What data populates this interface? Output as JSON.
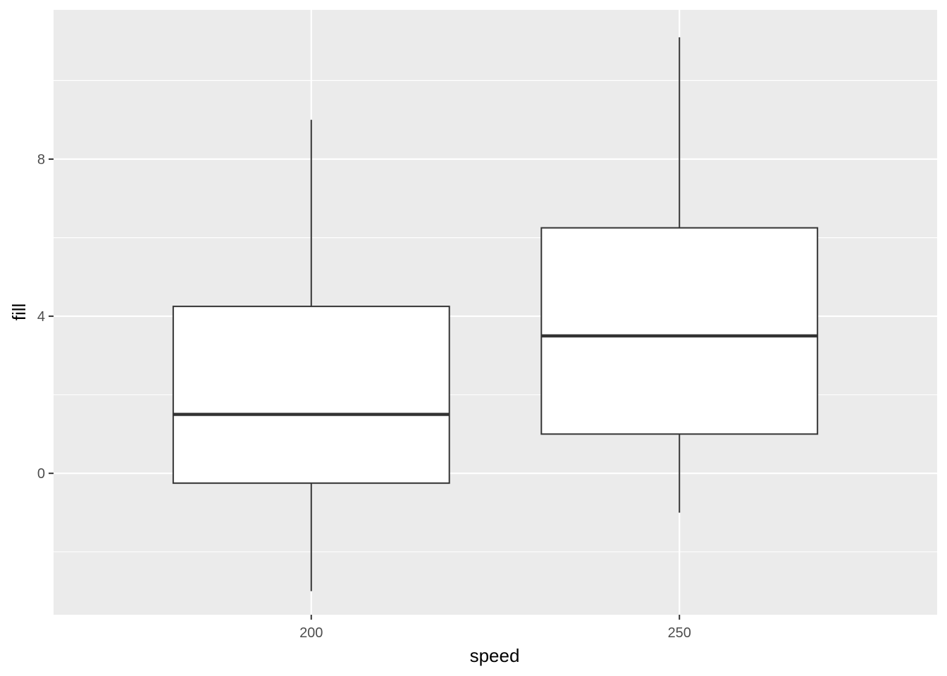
{
  "chart_data": {
    "type": "box",
    "title": "",
    "xlabel": "speed",
    "ylabel": "fill",
    "categories": [
      "200",
      "250"
    ],
    "yticks": [
      0,
      4,
      8
    ],
    "ylim": [
      -3.6,
      11.8
    ],
    "grid": true,
    "legend": "none",
    "boxes": [
      {
        "category": "200",
        "whisker_low": -3.0,
        "q1": -0.25,
        "median": 1.5,
        "q3": 4.25,
        "whisker_high": 9.0
      },
      {
        "category": "250",
        "whisker_low": -1.0,
        "q1": 1.0,
        "median": 3.5,
        "q3": 6.25,
        "whisker_high": 11.1
      }
    ],
    "colors": {
      "panel": "#ebebeb",
      "grid": "#ffffff",
      "box_fill": "#ffffff",
      "box_line": "#333333"
    }
  }
}
